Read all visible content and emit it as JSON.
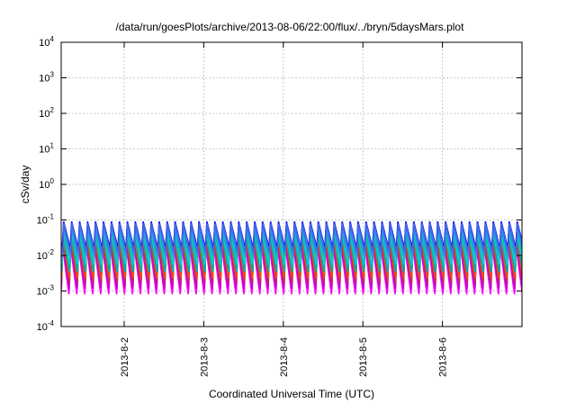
{
  "chart_data": {
    "type": "line",
    "title": "/data/run/goesPlots/archive/2013-08-06/22:00/flux/../bryn/5daysMars.plot",
    "xlabel": "Coordinated Universal Time (UTC)",
    "ylabel": "cSv/day",
    "y_scale": "log",
    "ylim": [
      0.0001,
      10000
    ],
    "y_ticks": [
      {
        "base": "10",
        "exp": "-4"
      },
      {
        "base": "10",
        "exp": "-3"
      },
      {
        "base": "10",
        "exp": "-2"
      },
      {
        "base": "10",
        "exp": "-1"
      },
      {
        "base": "10",
        "exp": "0"
      },
      {
        "base": "10",
        "exp": "1"
      },
      {
        "base": "10",
        "exp": "2"
      },
      {
        "base": "10",
        "exp": "3"
      },
      {
        "base": "10",
        "exp": "4"
      }
    ],
    "xlim": [
      "2013-08-01 05:00",
      "2013-08-07 00:00"
    ],
    "x_ticks": [
      "2013-8-2",
      "2013-8-3",
      "2013-8-4",
      "2013-8-5",
      "2013-8-6"
    ],
    "grid": true,
    "legend": "none",
    "sawtooth_cycles_per_day": 10,
    "series": [
      {
        "color": "#ff00ff",
        "peak": 0.02,
        "trough": 0.0007
      },
      {
        "color": "#cc00cc",
        "peak": 0.025,
        "trough": 0.001
      },
      {
        "color": "#b03060",
        "peak": 0.03,
        "trough": 0.0015
      },
      {
        "color": "#ff4500",
        "peak": 0.035,
        "trough": 0.002
      },
      {
        "color": "#00aaaa",
        "peak": 0.04,
        "trough": 0.003
      },
      {
        "color": "#00cccc",
        "peak": 0.045,
        "trough": 0.005
      },
      {
        "color": "#20b2aa",
        "peak": 0.05,
        "trough": 0.008
      },
      {
        "color": "#1e90ff",
        "peak": 0.07,
        "trough": 0.01
      },
      {
        "color": "#0000ff",
        "peak": 0.09,
        "trough": 0.015
      },
      {
        "color": "#4169e1",
        "peak": 0.08,
        "trough": 0.012
      }
    ]
  }
}
